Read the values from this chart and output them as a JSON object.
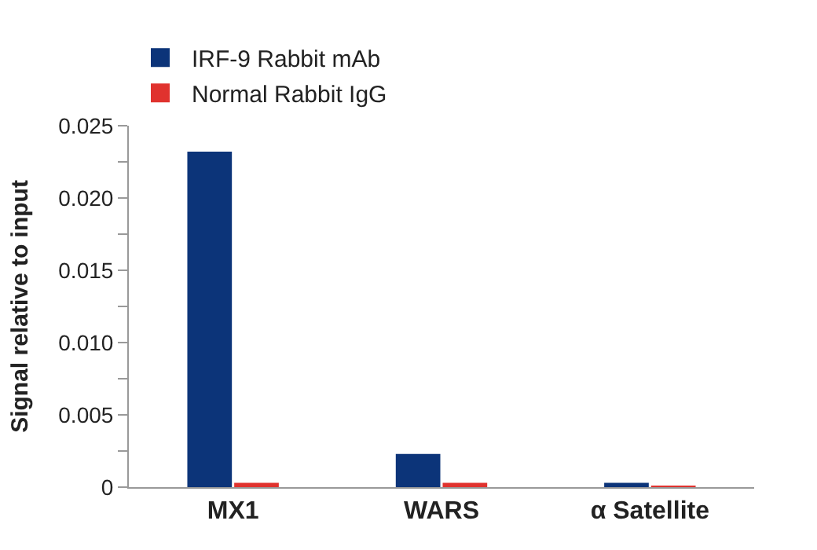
{
  "chart_data": {
    "type": "bar",
    "ylabel": "Signal relative to input",
    "categories": [
      "MX1",
      "WARS",
      "α Satellite"
    ],
    "series": [
      {
        "name": "IRF-9 Rabbit mAb",
        "color": "#0c3479",
        "values": [
          0.0232,
          0.0023,
          0.0003
        ]
      },
      {
        "name": "Normal Rabbit IgG",
        "color": "#e0322e",
        "values": [
          0.0003,
          0.0003,
          0.0001
        ]
      }
    ],
    "ylim": [
      0,
      0.025
    ],
    "yticks": [
      0,
      {
        "value": 0.0025,
        "label": null
      },
      0.005,
      {
        "value": 0.0075,
        "label": null
      },
      {
        "value": 0.01,
        "label": "0.010"
      },
      {
        "value": 0.0125,
        "label": null
      },
      0.015,
      {
        "value": 0.0175,
        "label": null
      },
      {
        "value": 0.02,
        "label": "0.020"
      },
      {
        "value": 0.0225,
        "label": null
      },
      0.025
    ],
    "legend": "top left"
  }
}
